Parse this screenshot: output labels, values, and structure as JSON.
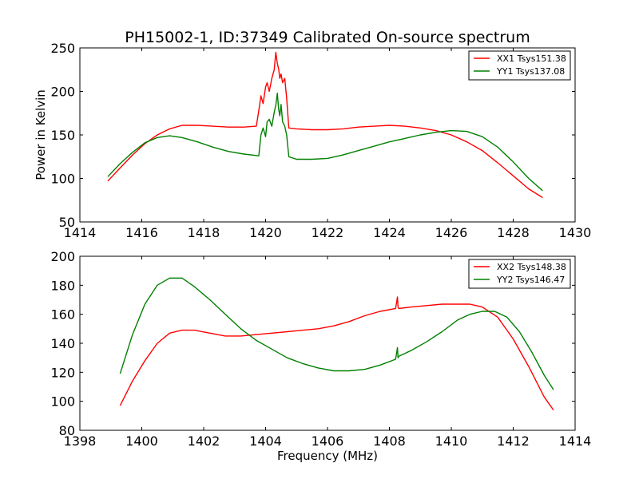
{
  "figure": {
    "title": "PH15002-1, ID:37349 Calibrated On-source spectrum"
  },
  "chart_data": [
    {
      "type": "line",
      "title": "PH15002-1, ID:37349 Calibrated On-source spectrum",
      "xlabel": "",
      "ylabel": "Power in Kelvin",
      "xlim": [
        1414,
        1430
      ],
      "ylim": [
        50,
        250
      ],
      "xticks": [
        "1414",
        "1416",
        "1418",
        "1420",
        "1422",
        "1424",
        "1426",
        "1428",
        "1430"
      ],
      "yticks": [
        "50",
        "100",
        "150",
        "200",
        "250"
      ],
      "grid": false,
      "legend_position": "top-right",
      "series": [
        {
          "name": "XX1 Tsys151.38",
          "color": "#ff0000",
          "x": [
            1414.9,
            1415.3,
            1415.7,
            1416.1,
            1416.5,
            1416.9,
            1417.3,
            1417.8,
            1418.3,
            1418.8,
            1419.3,
            1419.7,
            1419.78,
            1419.85,
            1419.92,
            1420.0,
            1420.05,
            1420.12,
            1420.2,
            1420.28,
            1420.33,
            1420.38,
            1420.42,
            1420.46,
            1420.5,
            1420.55,
            1420.62,
            1420.68,
            1420.75,
            1421.0,
            1421.5,
            1422.0,
            1422.5,
            1423.0,
            1423.5,
            1424.0,
            1424.5,
            1425.0,
            1425.5,
            1426.0,
            1426.5,
            1427.0,
            1427.5,
            1428.0,
            1428.5,
            1428.95
          ],
          "y": [
            97,
            112,
            127,
            140,
            150,
            157,
            161,
            161,
            160,
            159,
            159,
            160,
            178,
            195,
            186,
            205,
            210,
            200,
            215,
            225,
            245,
            232,
            226,
            215,
            220,
            210,
            215,
            192,
            158,
            157,
            156,
            156,
            157,
            159,
            160,
            161,
            160,
            158,
            155,
            150,
            142,
            132,
            118,
            103,
            88,
            78
          ]
        },
        {
          "name": "YY1 Tsys137.08",
          "color": "#008000",
          "x": [
            1414.9,
            1415.3,
            1415.7,
            1416.1,
            1416.5,
            1416.9,
            1417.3,
            1417.8,
            1418.3,
            1418.8,
            1419.3,
            1419.78,
            1419.85,
            1419.92,
            1420.0,
            1420.05,
            1420.12,
            1420.2,
            1420.28,
            1420.33,
            1420.38,
            1420.42,
            1420.46,
            1420.5,
            1420.55,
            1420.62,
            1420.68,
            1420.75,
            1421.0,
            1421.5,
            1422.0,
            1422.5,
            1423.0,
            1423.5,
            1424.0,
            1424.5,
            1425.0,
            1425.5,
            1426.0,
            1426.5,
            1427.0,
            1427.5,
            1428.0,
            1428.5,
            1428.95
          ],
          "y": [
            102,
            117,
            130,
            141,
            147,
            149,
            147,
            142,
            136,
            131,
            128,
            126,
            150,
            158,
            148,
            165,
            168,
            160,
            176,
            184,
            198,
            180,
            172,
            185,
            165,
            160,
            150,
            125,
            122,
            122,
            123,
            127,
            132,
            137,
            142,
            146,
            150,
            153,
            155,
            154,
            148,
            136,
            119,
            100,
            86
          ]
        }
      ]
    },
    {
      "type": "line",
      "title": "",
      "xlabel": "Frequency (MHz)",
      "ylabel": "",
      "xlim": [
        1398,
        1414
      ],
      "ylim": [
        80,
        200
      ],
      "xticks": [
        "1398",
        "1400",
        "1402",
        "1404",
        "1406",
        "1408",
        "1410",
        "1412",
        "1414"
      ],
      "yticks": [
        "80",
        "100",
        "120",
        "140",
        "160",
        "180",
        "200"
      ],
      "grid": false,
      "legend_position": "top-right",
      "series": [
        {
          "name": "XX2 Tsys148.38",
          "color": "#ff0000",
          "x": [
            1399.3,
            1399.7,
            1400.1,
            1400.5,
            1400.9,
            1401.3,
            1401.7,
            1402.2,
            1402.7,
            1403.2,
            1403.7,
            1404.2,
            1404.7,
            1405.2,
            1405.7,
            1406.2,
            1406.7,
            1407.2,
            1407.7,
            1408.2,
            1408.26,
            1408.28,
            1408.3,
            1408.7,
            1409.2,
            1409.7,
            1410.2,
            1410.6,
            1411.0,
            1411.5,
            1412.0,
            1412.5,
            1413.0,
            1413.3
          ],
          "y": [
            97,
            114,
            128,
            140,
            147,
            149,
            149,
            147,
            145,
            145,
            146,
            147,
            148,
            149,
            150,
            152,
            155,
            159,
            162,
            164,
            172,
            165,
            164,
            165,
            166,
            167,
            167,
            167,
            165,
            158,
            143,
            124,
            103,
            94
          ]
        },
        {
          "name": "YY2 Tsys146.47",
          "color": "#008000",
          "x": [
            1399.3,
            1399.7,
            1400.1,
            1400.5,
            1400.9,
            1401.3,
            1401.7,
            1402.2,
            1402.7,
            1403.2,
            1403.7,
            1404.2,
            1404.7,
            1405.2,
            1405.7,
            1406.2,
            1406.7,
            1407.2,
            1407.7,
            1408.2,
            1408.26,
            1408.28,
            1408.3,
            1408.7,
            1409.2,
            1409.7,
            1410.2,
            1410.6,
            1411.0,
            1411.4,
            1411.8,
            1412.2,
            1412.6,
            1413.0,
            1413.3
          ],
          "y": [
            119,
            146,
            167,
            180,
            185,
            185,
            179,
            170,
            160,
            150,
            142,
            136,
            130,
            126,
            123,
            121,
            121,
            122,
            125,
            129,
            137,
            130,
            131,
            135,
            141,
            148,
            156,
            160,
            162,
            162,
            158,
            148,
            134,
            118,
            108
          ]
        }
      ]
    }
  ]
}
